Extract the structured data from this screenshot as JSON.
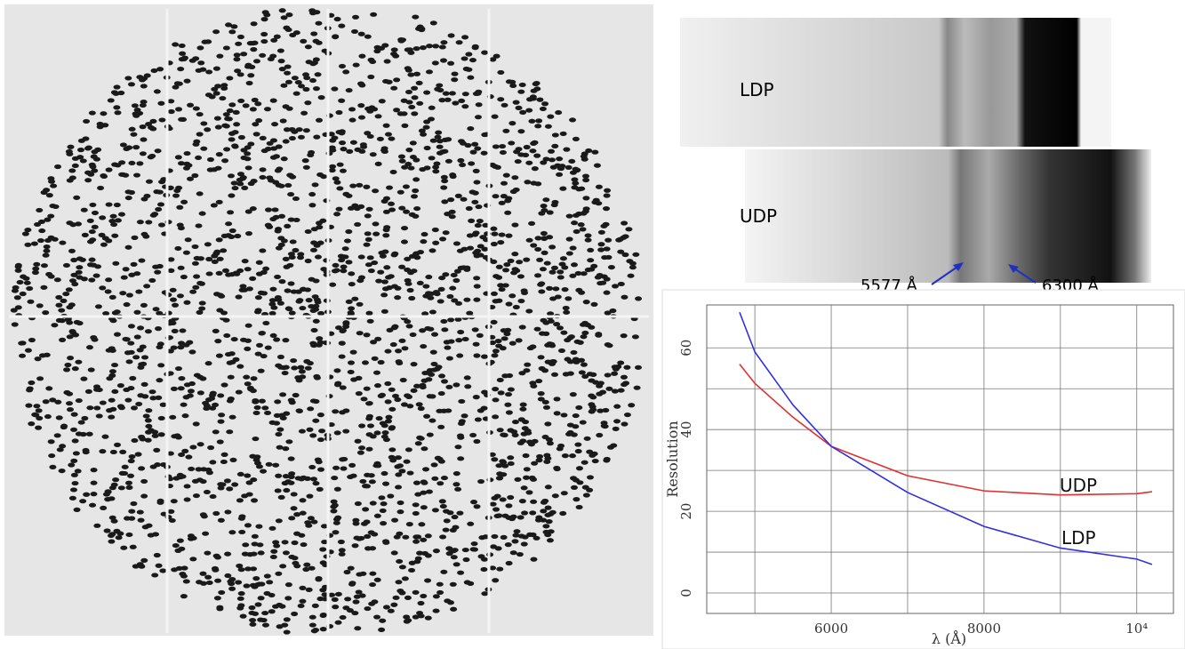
{
  "spectra": {
    "strips": [
      "LDP",
      "UDP"
    ],
    "lines": [
      "5577 Å",
      "6300 Å"
    ]
  },
  "chart_data": {
    "type": "line",
    "xlabel": "λ (Å)",
    "ylabel": "Resolution",
    "x": [
      4800,
      5000,
      5500,
      6000,
      7000,
      8000,
      9000,
      10000,
      10200
    ],
    "series": [
      {
        "name": "UDP",
        "color": "#e03030",
        "values": [
          56,
          51.3,
          43,
          35.9,
          28.7,
          25,
          24,
          24.3,
          24.8
        ]
      },
      {
        "name": "LDP",
        "color": "#3030e0",
        "values": [
          68.7,
          59,
          46,
          35.9,
          24.6,
          16.3,
          11,
          8.3,
          7
        ]
      }
    ],
    "xlim": [
      4370,
      10480
    ],
    "ylim": [
      -5,
      70.5
    ],
    "xticks": [
      6000,
      8000,
      {
        "value": 10000,
        "label": "10⁴"
      }
    ],
    "xminor": [
      5000,
      7000,
      9000
    ],
    "yticks": [
      0,
      20,
      40,
      60
    ],
    "yminor": [
      10,
      30,
      50
    ],
    "grid": true
  }
}
